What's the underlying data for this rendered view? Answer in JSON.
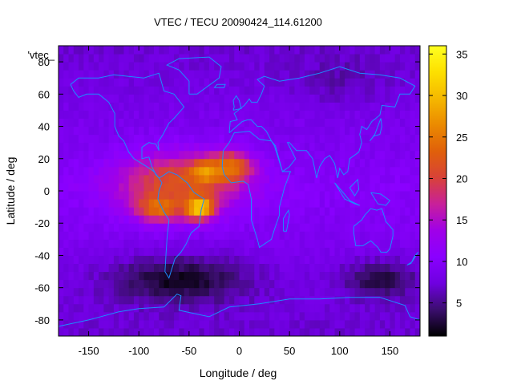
{
  "chart_data": {
    "type": "heatmap",
    "title": "VTEC / TECU 20090424_114.61200",
    "xlabel": "Longitude / deg",
    "ylabel": "Latitude / deg",
    "xlim": [
      -180,
      180
    ],
    "ylim": [
      -90,
      90
    ],
    "x_ticks": [
      -150,
      -100,
      -50,
      0,
      50,
      100,
      150
    ],
    "y_ticks": [
      -80,
      -60,
      -40,
      -20,
      0,
      20,
      40,
      60,
      80
    ],
    "colorbar": {
      "range": [
        1,
        36
      ],
      "ticks": [
        5,
        10,
        15,
        20,
        25,
        30,
        35
      ],
      "colors": [
        "#000000",
        "#3b0e6e",
        "#6f00e0",
        "#8a00ff",
        "#a000e8",
        "#c8209a",
        "#d84238",
        "#e0600a",
        "#eb8a00",
        "#f5b800",
        "#fde000",
        "#ffff20"
      ]
    },
    "map_label": "'vtec_",
    "background_level": 10,
    "features": [
      {
        "lon": -60,
        "lat": 5,
        "value": 22,
        "spread_lon": 60,
        "spread_lat": 18
      },
      {
        "lon": -40,
        "lat": -10,
        "value": 33,
        "spread_lon": 15,
        "spread_lat": 7
      },
      {
        "lon": -30,
        "lat": 12,
        "value": 30,
        "spread_lon": 18,
        "spread_lat": 6
      },
      {
        "lon": -80,
        "lat": -10,
        "value": 25,
        "spread_lon": 22,
        "spread_lat": 8
      },
      {
        "lon": -10,
        "lat": 15,
        "value": 25,
        "spread_lon": 22,
        "spread_lat": 9
      },
      {
        "lon": -60,
        "lat": -55,
        "value": 2,
        "spread_lon": 70,
        "spread_lat": 15
      },
      {
        "lon": 140,
        "lat": -55,
        "value": 3,
        "spread_lon": 40,
        "spread_lat": 12
      },
      {
        "lon": 100,
        "lat": 70,
        "value": 6,
        "spread_lon": 50,
        "spread_lat": 15
      }
    ]
  }
}
